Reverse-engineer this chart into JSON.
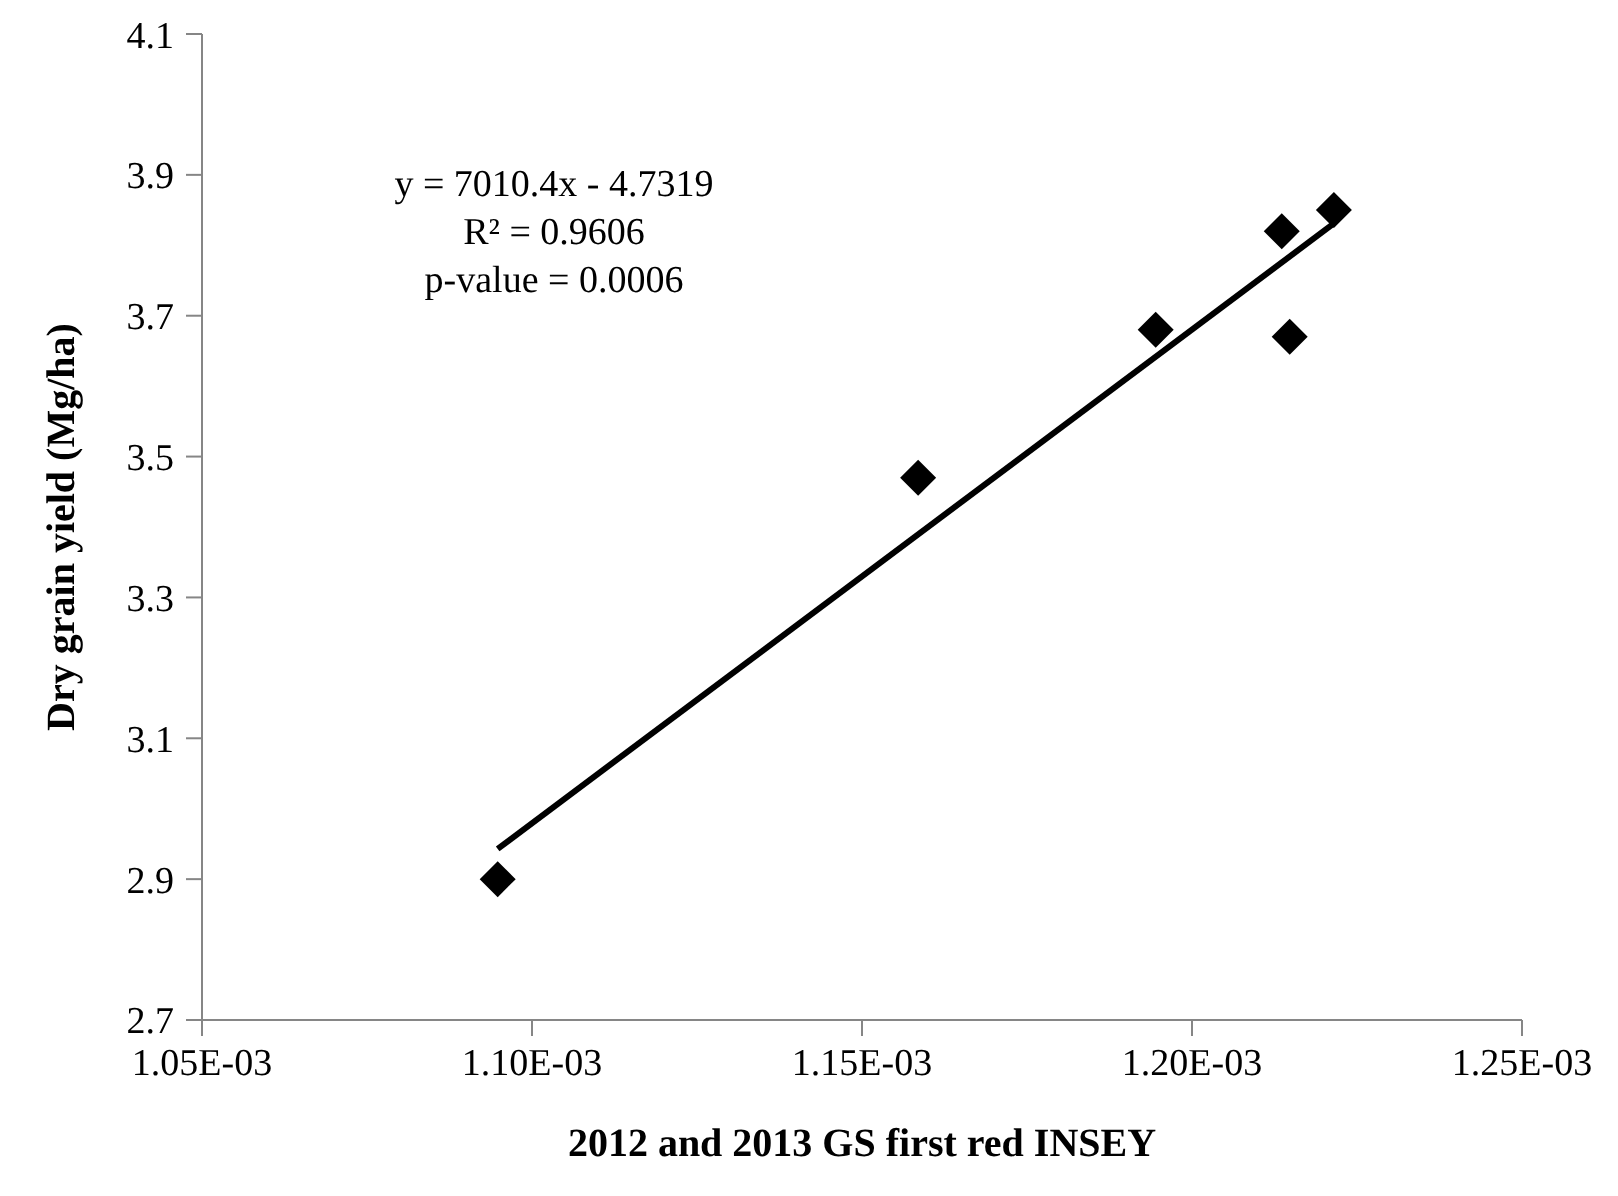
{
  "chart_data": {
    "type": "scatter",
    "xlabel": "2012 and 2013 GS first red INSEY",
    "ylabel": "Dry grain yield (Mg/ha)",
    "annotations": [
      "y = 7010.4x - 4.7319",
      "R² = 0.9606",
      "p-value = 0.0006"
    ],
    "xlim": [
      0.00105,
      0.00125
    ],
    "xticks": [
      {
        "value": 0.00105,
        "label": "1.05E-03"
      },
      {
        "value": 0.0011,
        "label": "1.10E-03"
      },
      {
        "value": 0.00115,
        "label": "1.15E-03"
      },
      {
        "value": 0.0012,
        "label": "1.20E-03"
      },
      {
        "value": 0.00125,
        "label": "1.25E-03"
      }
    ],
    "ylim": [
      2.7,
      4.1
    ],
    "yticks": [
      2.7,
      2.9,
      3.1,
      3.3,
      3.5,
      3.7,
      3.9,
      4.1
    ],
    "grid": false,
    "series": [
      {
        "marker": "diamond",
        "color": "#000000",
        "x": [
          0.0010948,
          0.0011585,
          0.0011945,
          0.0012136,
          0.0012148,
          0.0012215
        ],
        "values": [
          2.9,
          3.47,
          3.68,
          3.82,
          3.67,
          3.85
        ]
      },
      {
        "type": "line",
        "marker": "none",
        "color": "#000000",
        "x": [
          0.0010948,
          0.0012215
        ],
        "values": [
          2.943,
          3.831
        ]
      }
    ]
  }
}
